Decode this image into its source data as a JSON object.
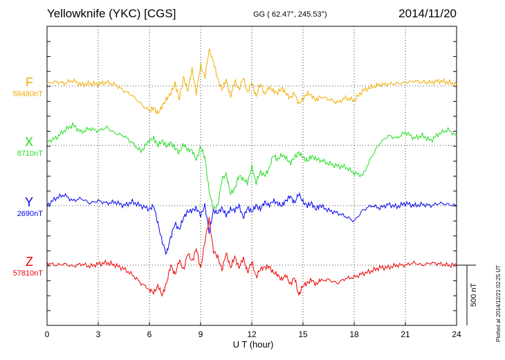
{
  "header": {
    "station": "Yellowknife (YKC)  [CGS]",
    "coords": "GG ( 62.47°, 245.53°)",
    "date": "2014/11/20"
  },
  "plotted_note": "Plotted at 2014/12/21  02:25 UT",
  "colors": {
    "F": "#f0ad00",
    "X": "#22dd22",
    "Y": "#0000ee",
    "Z": "#ee0000",
    "grid": "#000000"
  },
  "chart_data": {
    "type": "line",
    "title": "Yellowknife (YKC)  [CGS]",
    "xlabel": "U T (hour)",
    "xlim": [
      0,
      24
    ],
    "xticks": [
      "0",
      "3",
      "6",
      "9",
      "12",
      "15",
      "18",
      "21",
      "24"
    ],
    "scale_bar_label": "500 nT",
    "scale_bar_nT": 500,
    "series": [
      {
        "name": "F",
        "baseline_label": "58480nT",
        "baseline_nT": 58480,
        "x": [
          0,
          0.5,
          1,
          1.5,
          2,
          2.5,
          3,
          3.5,
          4,
          4.5,
          5,
          5.5,
          6,
          6.25,
          6.5,
          6.75,
          7,
          7.25,
          7.5,
          7.75,
          8,
          8.25,
          8.5,
          8.75,
          9,
          9.25,
          9.5,
          9.75,
          10,
          10.25,
          10.5,
          10.75,
          11,
          11.25,
          11.5,
          11.75,
          12,
          12.25,
          12.5,
          12.75,
          13,
          13.25,
          13.5,
          13.75,
          14,
          14.25,
          14.5,
          14.75,
          15,
          15.25,
          15.5,
          15.75,
          16,
          16.5,
          17,
          17.5,
          18,
          18.5,
          19,
          19.5,
          20,
          20.5,
          21,
          21.5,
          22,
          22.5,
          23,
          23.5,
          24
        ],
        "values": [
          20,
          35,
          20,
          45,
          10,
          20,
          15,
          30,
          10,
          -40,
          -80,
          -150,
          -210,
          -180,
          -230,
          -170,
          -110,
          -60,
          20,
          -110,
          70,
          -40,
          140,
          -60,
          170,
          70,
          300,
          200,
          60,
          -30,
          50,
          -90,
          40,
          -30,
          70,
          -60,
          30,
          -90,
          20,
          -70,
          -10,
          -40,
          -60,
          -20,
          -60,
          -100,
          -60,
          -150,
          -110,
          -60,
          -80,
          -120,
          -90,
          -110,
          -140,
          -100,
          -120,
          -40,
          -10,
          10,
          15,
          20,
          25,
          40,
          30,
          30,
          40,
          30,
          10
        ]
      },
      {
        "name": "X",
        "baseline_label": "8710nT",
        "baseline_nT": 8710,
        "x": [
          0,
          0.5,
          1,
          1.5,
          2,
          2.5,
          3,
          3.5,
          4,
          4.5,
          5,
          5.5,
          6,
          6.25,
          6.5,
          6.75,
          7,
          7.25,
          7.5,
          7.75,
          8,
          8.25,
          8.5,
          8.75,
          9,
          9.25,
          9.5,
          9.75,
          10,
          10.25,
          10.5,
          10.75,
          11,
          11.25,
          11.5,
          11.75,
          12,
          12.25,
          12.5,
          12.75,
          13,
          13.25,
          13.5,
          13.75,
          14,
          14.25,
          14.5,
          14.75,
          15,
          15.25,
          15.5,
          15.75,
          16,
          16.5,
          17,
          17.5,
          18,
          18.5,
          19,
          19.5,
          20,
          20.5,
          21,
          21.5,
          22,
          22.5,
          23,
          23.5,
          24
        ],
        "values": [
          30,
          60,
          120,
          170,
          110,
          140,
          120,
          150,
          100,
          80,
          20,
          -50,
          40,
          60,
          0,
          40,
          -10,
          20,
          -20,
          -60,
          10,
          -40,
          -40,
          -120,
          -10,
          -100,
          -380,
          -530,
          -500,
          -280,
          -240,
          -400,
          -360,
          -250,
          -280,
          -310,
          -180,
          -310,
          -220,
          -250,
          -200,
          -80,
          -120,
          -80,
          -100,
          -150,
          -100,
          -60,
          -100,
          -130,
          -90,
          -110,
          -120,
          -150,
          -170,
          -180,
          -230,
          -250,
          -100,
          20,
          80,
          60,
          110,
          60,
          80,
          40,
          100,
          130,
          80
        ]
      },
      {
        "name": "Y",
        "baseline_label": "2690nT",
        "baseline_nT": 2690,
        "x": [
          0,
          0.5,
          1,
          1.5,
          2,
          2.5,
          3,
          3.5,
          4,
          4.5,
          5,
          5.5,
          6,
          6.25,
          6.5,
          6.75,
          7,
          7.25,
          7.5,
          7.75,
          8,
          8.25,
          8.5,
          8.75,
          9,
          9.25,
          9.5,
          9.75,
          10,
          10.25,
          10.5,
          10.75,
          11,
          11.25,
          11.5,
          11.75,
          12,
          12.25,
          12.5,
          12.75,
          13,
          13.25,
          13.5,
          13.75,
          14,
          14.25,
          14.5,
          14.75,
          15,
          15.25,
          15.5,
          15.75,
          16,
          16.5,
          17,
          17.5,
          18,
          18.5,
          19,
          19.5,
          20,
          20.5,
          21,
          21.5,
          22,
          22.5,
          23,
          23.5,
          24
        ],
        "values": [
          0,
          60,
          90,
          40,
          60,
          20,
          40,
          20,
          30,
          0,
          30,
          0,
          -30,
          0,
          -150,
          -300,
          -400,
          -260,
          -150,
          -200,
          -100,
          -50,
          -40,
          -20,
          -80,
          0,
          -220,
          -40,
          -60,
          -20,
          -80,
          -30,
          -40,
          0,
          -100,
          -20,
          -50,
          0,
          -30,
          30,
          0,
          40,
          20,
          0,
          40,
          80,
          20,
          100,
          30,
          0,
          20,
          -30,
          0,
          -40,
          -60,
          -90,
          -130,
          -40,
          0,
          -20,
          10,
          -10,
          20,
          0,
          10,
          0,
          20,
          10,
          0
        ]
      },
      {
        "name": "Z",
        "baseline_label": "57810nT",
        "baseline_nT": 57810,
        "x": [
          0,
          0.5,
          1,
          1.5,
          2,
          2.5,
          3,
          3.5,
          4,
          4.5,
          5,
          5.5,
          6,
          6.25,
          6.5,
          6.75,
          7,
          7.25,
          7.5,
          7.75,
          8,
          8.25,
          8.5,
          8.75,
          9,
          9.25,
          9.5,
          9.75,
          10,
          10.25,
          10.5,
          10.75,
          11,
          11.25,
          11.5,
          11.75,
          12,
          12.25,
          12.5,
          12.75,
          13,
          13.25,
          13.5,
          13.75,
          14,
          14.25,
          14.5,
          14.75,
          15,
          15.25,
          15.5,
          15.75,
          16,
          16.5,
          17,
          17.5,
          18,
          18.5,
          19,
          19.5,
          20,
          20.5,
          21,
          21.5,
          22,
          22.5,
          23,
          23.5,
          24
        ],
        "values": [
          20,
          0,
          10,
          -10,
          10,
          -10,
          10,
          20,
          0,
          -30,
          -80,
          -150,
          -200,
          -230,
          -170,
          -250,
          -150,
          0,
          -80,
          40,
          -40,
          100,
          30,
          140,
          -30,
          200,
          380,
          120,
          70,
          -40,
          100,
          -20,
          70,
          -20,
          60,
          -60,
          30,
          -100,
          -30,
          -20,
          -10,
          -60,
          -80,
          -120,
          -80,
          -160,
          -100,
          -250,
          -170,
          -150,
          -120,
          -160,
          -130,
          -120,
          -150,
          -110,
          -100,
          -70,
          -50,
          -20,
          -20,
          0,
          0,
          20,
          0,
          20,
          10,
          0,
          0
        ]
      }
    ]
  }
}
